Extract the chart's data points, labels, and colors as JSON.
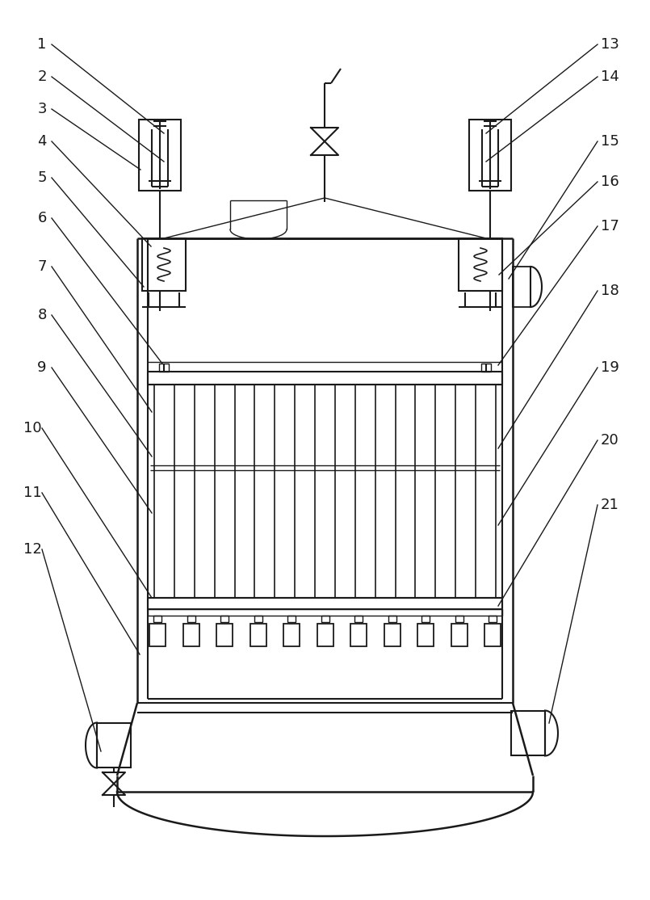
{
  "bg_color": "#ffffff",
  "line_color": "#1a1a1a",
  "lw": 1.5,
  "thin_lw": 1.0,
  "label_fontsize": 13
}
